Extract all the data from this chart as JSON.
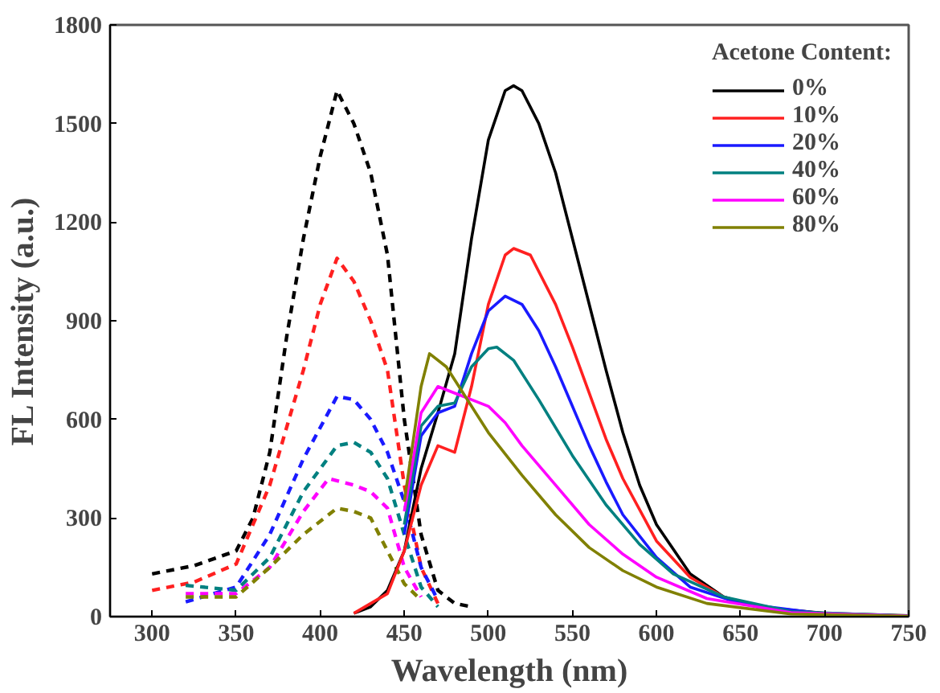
{
  "chart_data": {
    "type": "line",
    "xlabel": "Wavelength (nm)",
    "ylabel": "FL Intensity (a.u.)",
    "legend_title": "Acetone Content:",
    "legend": "top right",
    "grid": false,
    "marker": "none",
    "xlim": [
      275,
      750
    ],
    "xticks": [
      300,
      350,
      400,
      450,
      500,
      550,
      600,
      650,
      700,
      750
    ],
    "ylim": [
      0,
      1800
    ],
    "yticks": [
      0,
      300,
      600,
      900,
      1200,
      1500,
      1800
    ],
    "series": [
      {
        "color": "#000000",
        "line_style": "dashed",
        "x": [
          300,
          325,
          350,
          360,
          370,
          380,
          390,
          400,
          410,
          420,
          430,
          440,
          450,
          460,
          470,
          480,
          490
        ],
        "values": [
          130,
          155,
          200,
          300,
          500,
          850,
          1150,
          1400,
          1600,
          1500,
          1350,
          1100,
          600,
          250,
          80,
          40,
          30
        ]
      },
      {
        "color": "#ff2020",
        "line_style": "dashed",
        "x": [
          300,
          325,
          350,
          370,
          390,
          400,
          410,
          420,
          430,
          440,
          450,
          460,
          470
        ],
        "values": [
          80,
          105,
          160,
          400,
          750,
          950,
          1090,
          1020,
          900,
          750,
          400,
          150,
          40
        ]
      },
      {
        "color": "#1a1aff",
        "line_style": "dashed",
        "x": [
          320,
          350,
          370,
          390,
          410,
          420,
          430,
          440,
          450,
          460,
          470
        ],
        "values": [
          45,
          90,
          250,
          480,
          670,
          660,
          600,
          500,
          350,
          150,
          50
        ]
      },
      {
        "color": "#008080",
        "line_style": "dashed",
        "x": [
          320,
          350,
          370,
          390,
          410,
          420,
          430,
          440,
          450,
          460,
          470
        ],
        "values": [
          95,
          80,
          180,
          380,
          520,
          530,
          500,
          420,
          250,
          90,
          30
        ]
      },
      {
        "color": "#ff00ff",
        "line_style": "dashed",
        "x": [
          320,
          350,
          370,
          390,
          405,
          420,
          430,
          440,
          450,
          460
        ],
        "values": [
          70,
          70,
          150,
          320,
          420,
          400,
          380,
          330,
          150,
          60
        ]
      },
      {
        "color": "#808000",
        "line_style": "dashed",
        "x": [
          320,
          350,
          370,
          390,
          410,
          420,
          430,
          440,
          450,
          460
        ],
        "values": [
          60,
          60,
          150,
          250,
          330,
          320,
          300,
          200,
          100,
          50
        ]
      },
      {
        "name": "0%",
        "color": "#000000",
        "line_style": "solid",
        "x": [
          420,
          430,
          440,
          450,
          460,
          470,
          480,
          490,
          500,
          510,
          515,
          520,
          530,
          540,
          550,
          560,
          570,
          580,
          590,
          600,
          620,
          640,
          660,
          700,
          750
        ],
        "values": [
          10,
          30,
          80,
          200,
          450,
          620,
          800,
          1150,
          1450,
          1600,
          1615,
          1600,
          1500,
          1350,
          1150,
          950,
          750,
          560,
          400,
          280,
          130,
          60,
          30,
          10,
          3
        ]
      },
      {
        "name": "10%",
        "color": "#ff2020",
        "line_style": "solid",
        "x": [
          420,
          440,
          450,
          460,
          470,
          480,
          490,
          500,
          510,
          515,
          525,
          540,
          550,
          560,
          570,
          580,
          600,
          620,
          640,
          660,
          680
        ],
        "values": [
          10,
          70,
          200,
          400,
          520,
          500,
          700,
          950,
          1100,
          1120,
          1100,
          950,
          820,
          680,
          540,
          420,
          230,
          120,
          60,
          30,
          15
        ]
      },
      {
        "name": "20%",
        "color": "#1a1aff",
        "line_style": "solid",
        "x": [
          450,
          460,
          470,
          480,
          490,
          500,
          510,
          520,
          530,
          540,
          550,
          560,
          570,
          580,
          600,
          620,
          650,
          700,
          750
        ],
        "values": [
          250,
          550,
          620,
          640,
          800,
          930,
          975,
          950,
          870,
          760,
          640,
          520,
          410,
          310,
          180,
          90,
          40,
          8,
          2
        ]
      },
      {
        "name": "40%",
        "color": "#008080",
        "line_style": "solid",
        "x": [
          450,
          460,
          470,
          480,
          490,
          500,
          505,
          515,
          530,
          550,
          570,
          590,
          610,
          640,
          680,
          750
        ],
        "values": [
          280,
          580,
          640,
          650,
          760,
          815,
          820,
          780,
          660,
          490,
          340,
          220,
          130,
          60,
          15,
          2
        ]
      },
      {
        "name": "60%",
        "color": "#ff00ff",
        "line_style": "solid",
        "x": [
          450,
          460,
          470,
          480,
          490,
          500,
          510,
          520,
          540,
          560,
          580,
          600,
          630,
          680,
          750
        ],
        "values": [
          320,
          620,
          700,
          680,
          660,
          640,
          590,
          520,
          400,
          280,
          190,
          120,
          55,
          12,
          2
        ]
      },
      {
        "name": "80%",
        "color": "#808000",
        "line_style": "solid",
        "x": [
          450,
          460,
          465,
          475,
          490,
          500,
          520,
          540,
          560,
          580,
          600,
          630,
          680,
          750
        ],
        "values": [
          350,
          700,
          800,
          760,
          640,
          560,
          430,
          310,
          210,
          140,
          90,
          40,
          8,
          1
        ]
      }
    ]
  }
}
